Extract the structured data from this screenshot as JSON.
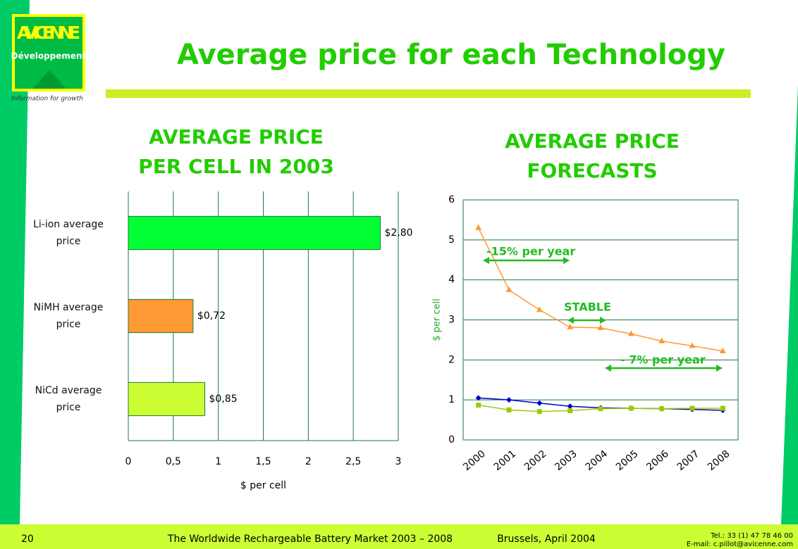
{
  "slide": {
    "title": "Average price for each Technology",
    "logo_name": "AVICENNE",
    "logo_sub": "Développement",
    "tagline": "Information for growth",
    "page_number": "20",
    "footer_title": "The Worldwide Rechargeable  Battery Market 2003 – 2008",
    "footer_place": "Brussels, April 2004",
    "footer_tel": "Tel.: 33 (1) 47 78 46 00",
    "footer_email": "E-mail: c.pillot@avicenne.com"
  },
  "chart_data": [
    {
      "type": "hbar",
      "title": "AVERAGE PRICE PER CELL IN 2003",
      "categories": [
        "Li-ion average price",
        "NiMH average price",
        "NiCd average price"
      ],
      "values": [
        2.8,
        0.72,
        0.85
      ],
      "value_labels": [
        "$2,80",
        "$0,72",
        "$0,85"
      ],
      "colors": [
        "#00ff33",
        "#ff9933",
        "#ccff33"
      ],
      "xlim": [
        0,
        3
      ],
      "xticks": [
        0,
        {
          "value": 0.5,
          "label": "0,5"
        },
        1,
        {
          "value": 1.5,
          "label": "1,5"
        },
        2,
        {
          "value": 2.5,
          "label": "2,5"
        },
        3
      ],
      "xlabel": "$ per cell",
      "grid": true
    },
    {
      "type": "line",
      "title": "AVERAGE PRICE FORECASTS",
      "categories": [
        "2000",
        "2001",
        "2002",
        "2003",
        "2004",
        "2005",
        "2006",
        "2007",
        "2008"
      ],
      "series": [
        {
          "color": "#ff9933",
          "marker": "triangle",
          "values": [
            5.3,
            3.75,
            3.25,
            2.82,
            2.8,
            2.65,
            2.47,
            2.35,
            2.22
          ]
        },
        {
          "color": "#0000cc",
          "marker": "diamond",
          "values": [
            1.05,
            1.0,
            0.92,
            0.84,
            0.8,
            0.79,
            0.78,
            0.76,
            0.74
          ]
        },
        {
          "color": "#99cc00",
          "marker": "square",
          "values": [
            0.87,
            0.75,
            0.71,
            0.73,
            0.78,
            0.79,
            0.78,
            0.79,
            0.79
          ]
        }
      ],
      "ylim": [
        0,
        6
      ],
      "yticks": [
        0,
        1,
        2,
        3,
        4,
        5,
        6
      ],
      "ylabel": "$ per cell",
      "grid": true,
      "annotations": [
        "-15% per year",
        "STABLE",
        "- 7% per year"
      ]
    }
  ]
}
